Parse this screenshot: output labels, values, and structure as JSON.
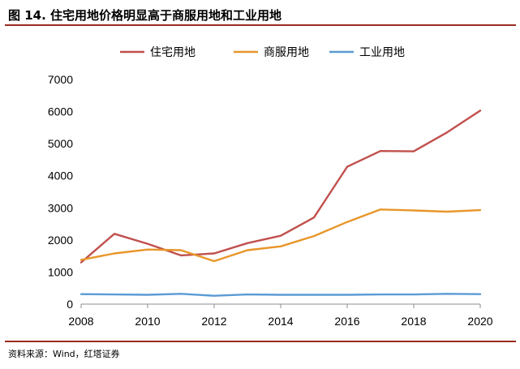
{
  "figure": {
    "title": "图 14. 住宅用地价格明显高于商服用地和工业用地",
    "source": "资料来源：Wind，红塔证券"
  },
  "chart_data": {
    "type": "line",
    "title": "图 14. 住宅用地价格明显高于商服用地和工业用地",
    "xlabel": "",
    "ylabel": "",
    "xlim": [
      2008,
      2020
    ],
    "ylim": [
      0,
      7000
    ],
    "x_ticks": [
      2008,
      2010,
      2012,
      2014,
      2016,
      2018,
      2020
    ],
    "y_ticks": [
      0,
      1000,
      2000,
      3000,
      4000,
      5000,
      6000,
      7000
    ],
    "grid": false,
    "legend_position": "top",
    "series": [
      {
        "name": "住宅用地",
        "color": "#C0504D",
        "x": [
          2008,
          2009,
          2010,
          2011,
          2012,
          2013,
          2014,
          2015,
          2016,
          2017,
          2018,
          2019,
          2020
        ],
        "values": [
          1300,
          2190,
          1880,
          1520,
          1580,
          1900,
          2130,
          2700,
          4280,
          4770,
          4760,
          5350,
          6030
        ]
      },
      {
        "name": "商服用地",
        "color": "#E8962A",
        "x": [
          2008,
          2009,
          2010,
          2011,
          2012,
          2013,
          2014,
          2015,
          2016,
          2017,
          2018,
          2019,
          2020
        ],
        "values": [
          1380,
          1580,
          1700,
          1680,
          1340,
          1680,
          1800,
          2120,
          2560,
          2950,
          2920,
          2880,
          2930
        ]
      },
      {
        "name": "工业用地",
        "color": "#5B9BD5",
        "x": [
          2008,
          2009,
          2010,
          2011,
          2012,
          2013,
          2014,
          2015,
          2016,
          2017,
          2018,
          2019,
          2020
        ],
        "values": [
          310,
          300,
          290,
          320,
          260,
          300,
          290,
          290,
          290,
          300,
          300,
          320,
          310
        ]
      }
    ]
  }
}
